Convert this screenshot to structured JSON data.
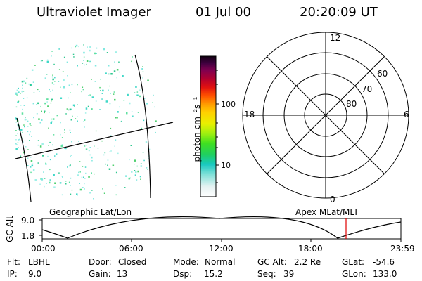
{
  "header": {
    "title": "Ultraviolet Imager",
    "date": "01 Jul 00",
    "time": "20:20:09 UT"
  },
  "colorbar": {
    "unit_label": "photon cm⁻²s⁻¹",
    "ticks": [
      "100",
      "10"
    ]
  },
  "polar": {
    "mlt_labels": [
      "12",
      "18",
      "6",
      "0"
    ],
    "lat_labels": [
      "60",
      "70",
      "80"
    ]
  },
  "orbit": {
    "left_title": "Geographic Lat/Lon",
    "right_title": "Apex MLat/MLT",
    "axis_title": "GC Alt",
    "y_ticks": [
      "9.0",
      "1.8"
    ],
    "x_ticks": [
      "00:00",
      "06:00",
      "12:00",
      "18:00",
      "23:59"
    ],
    "marker_color": "#e00000"
  },
  "status": {
    "flt_label": "Flt:",
    "flt_value": "LBHL",
    "ip_label": "IP:",
    "ip_value": "9.0",
    "door_label": "Door:",
    "door_value": "Closed",
    "gain_label": "Gain:",
    "gain_value": "13",
    "mode_label": "Mode:",
    "mode_value": "Normal",
    "dsp_label": "Dsp:",
    "dsp_value": "15.2",
    "gcalt_label": "GC Alt:",
    "gcalt_value": "2.2 Re",
    "seq_label": "Seq:",
    "seq_value": "39",
    "glat_label": "GLat:",
    "glat_value": "-54.6",
    "glon_label": "GLon:",
    "glon_value": "133.0"
  }
}
